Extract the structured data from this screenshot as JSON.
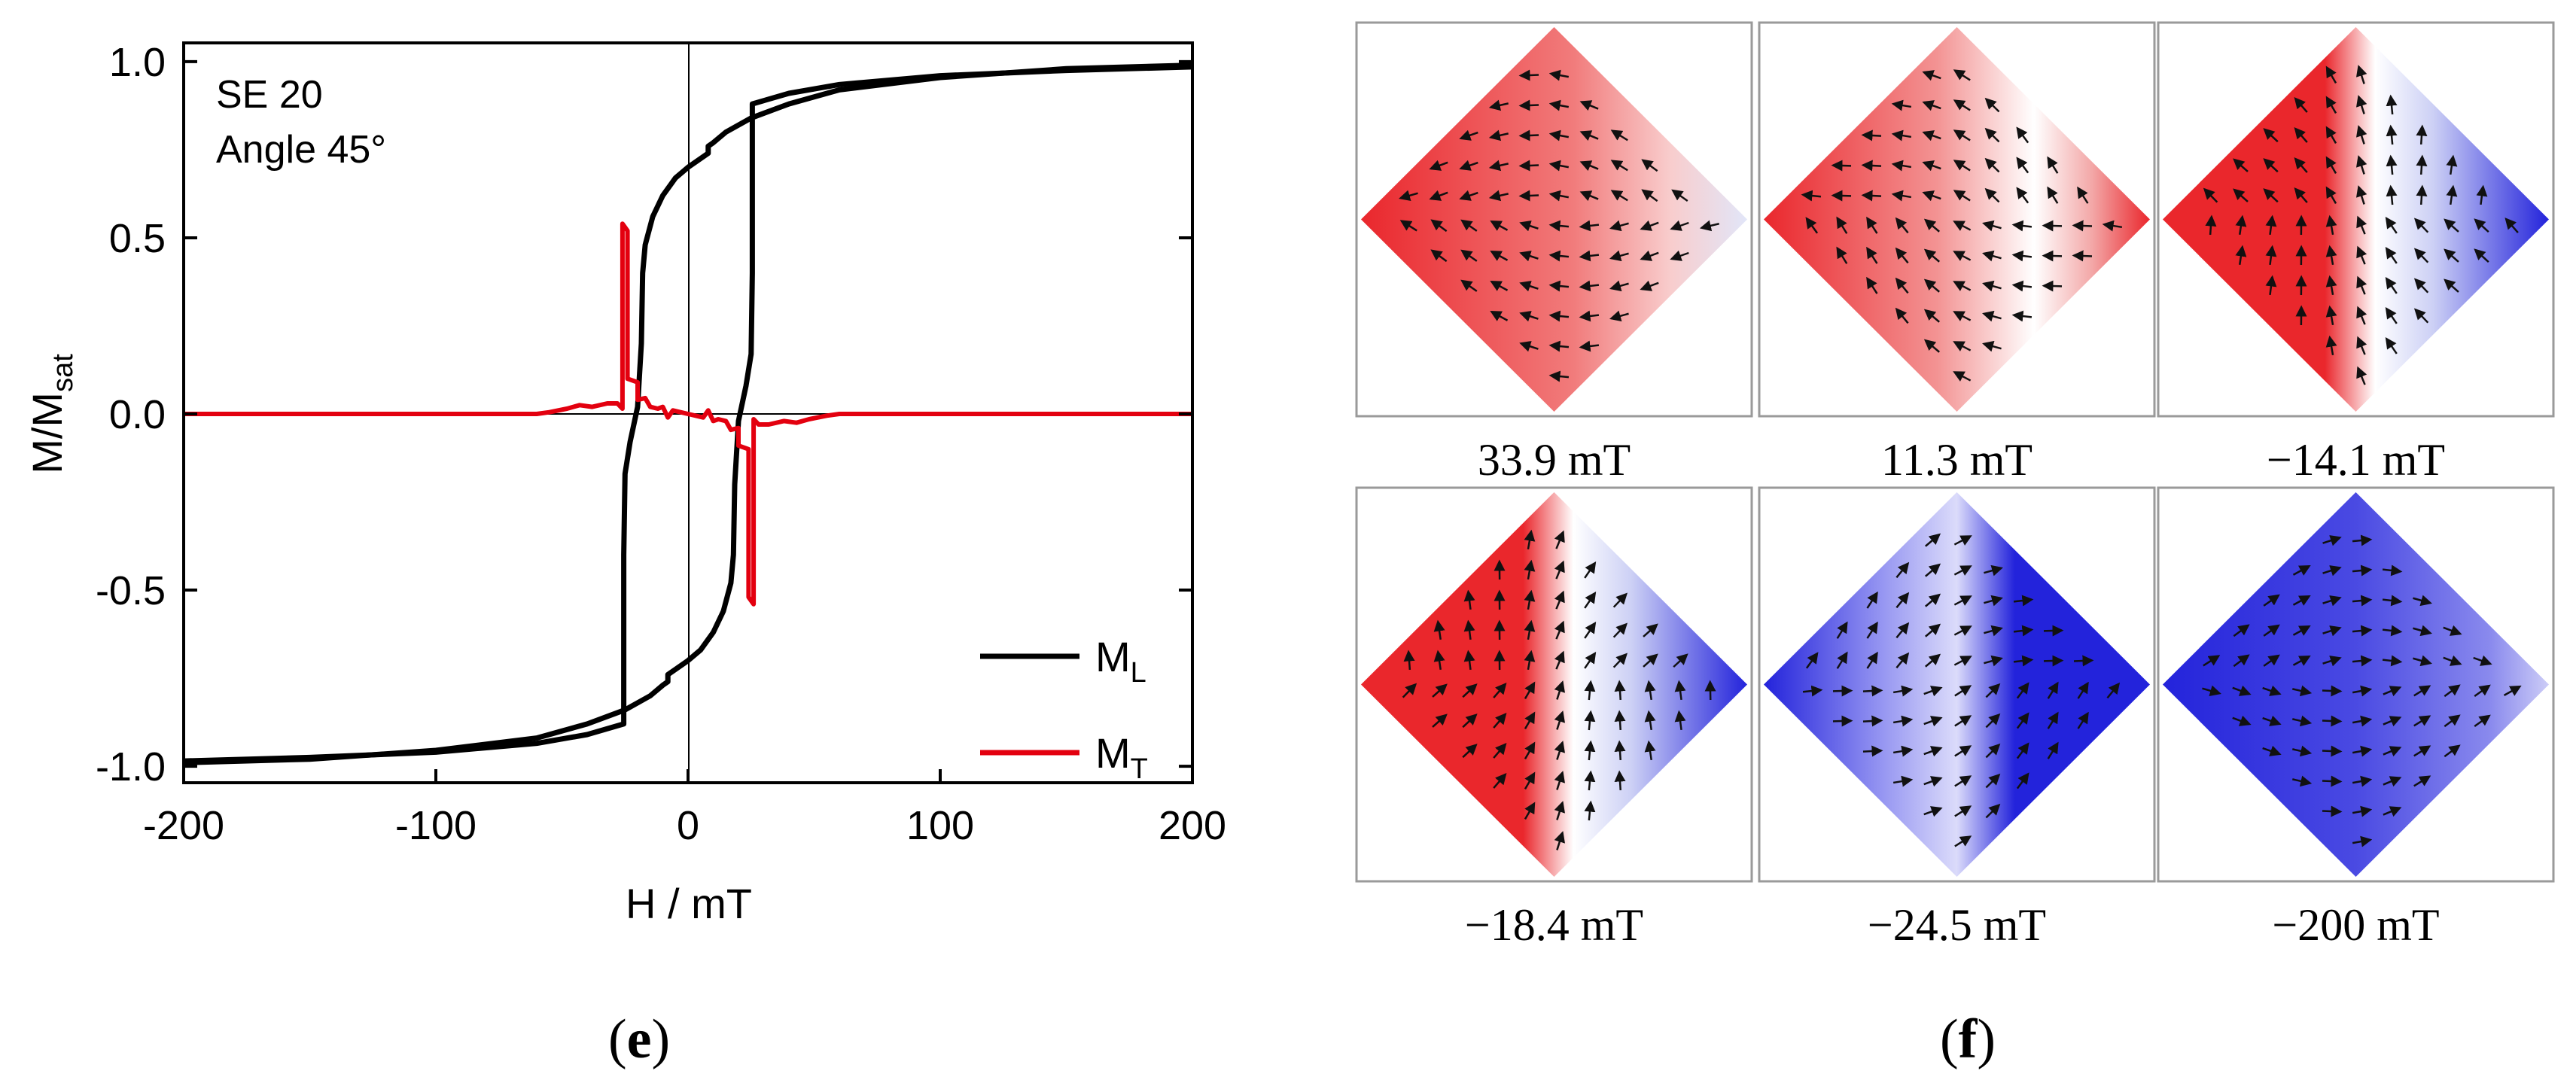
{
  "chart_data": [
    {
      "type": "line",
      "panel_label": "e",
      "xlabel": "H / mT",
      "ylabel_main": "M/M",
      "ylabel_sub": "sat",
      "xlim": [
        -200,
        200
      ],
      "ylim": [
        -1.05,
        1.05
      ],
      "xticks": [
        -200,
        -100,
        0,
        100,
        200
      ],
      "yticks": [
        -1.0,
        -0.5,
        0.0,
        0.5,
        1.0
      ],
      "xtick_labels": [
        "-200",
        "-100",
        "0",
        "100",
        "200"
      ],
      "ytick_labels": [
        "-1.0",
        "-0.5",
        "0.0",
        "0.5",
        "1.0"
      ],
      "annotations": [
        "SE 20",
        "Angle 45°"
      ],
      "legend": [
        {
          "name": "M",
          "sub": "L",
          "color": "#000000"
        },
        {
          "name": "M",
          "sub": "T",
          "color": "#e3000f"
        }
      ],
      "series": [
        {
          "name": "M_L descending",
          "color": "#000000",
          "points": [
            [
              200,
              0.99
            ],
            [
              150,
              0.98
            ],
            [
              100,
              0.955
            ],
            [
              60,
              0.92
            ],
            [
              40,
              0.88
            ],
            [
              25,
              0.84
            ],
            [
              15,
              0.8
            ],
            [
              10,
              0.77
            ],
            [
              8,
              0.76
            ],
            [
              8,
              0.74
            ],
            [
              0,
              0.7
            ],
            [
              -5,
              0.67
            ],
            [
              -10,
              0.62
            ],
            [
              -14,
              0.56
            ],
            [
              -17,
              0.48
            ],
            [
              -18,
              0.4
            ],
            [
              -18.5,
              0.2
            ],
            [
              -20,
              0.02
            ],
            [
              -23,
              -0.08
            ],
            [
              -25,
              -0.17
            ],
            [
              -25.5,
              -0.4
            ],
            [
              -25.5,
              -0.88
            ],
            [
              -40,
              -0.91
            ],
            [
              -60,
              -0.935
            ],
            [
              -100,
              -0.96
            ],
            [
              -150,
              -0.975
            ],
            [
              -200,
              -0.985
            ]
          ]
        },
        {
          "name": "M_L ascending",
          "color": "#000000",
          "points": [
            [
              -200,
              -0.99
            ],
            [
              -150,
              -0.98
            ],
            [
              -100,
              -0.955
            ],
            [
              -60,
              -0.92
            ],
            [
              -40,
              -0.88
            ],
            [
              -25,
              -0.84
            ],
            [
              -15,
              -0.8
            ],
            [
              -10,
              -0.77
            ],
            [
              -8,
              -0.76
            ],
            [
              -8,
              -0.74
            ],
            [
              0,
              -0.7
            ],
            [
              5,
              -0.67
            ],
            [
              10,
              -0.62
            ],
            [
              14,
              -0.56
            ],
            [
              17,
              -0.48
            ],
            [
              18,
              -0.4
            ],
            [
              18.5,
              -0.2
            ],
            [
              20,
              -0.02
            ],
            [
              23,
              0.08
            ],
            [
              25,
              0.17
            ],
            [
              25.5,
              0.4
            ],
            [
              25.5,
              0.88
            ],
            [
              40,
              0.91
            ],
            [
              60,
              0.935
            ],
            [
              100,
              0.96
            ],
            [
              150,
              0.975
            ],
            [
              200,
              0.985
            ]
          ]
        },
        {
          "name": "M_T",
          "color": "#e3000f",
          "points": [
            [
              -200,
              0
            ],
            [
              -60,
              0
            ],
            [
              -55,
              0.005
            ],
            [
              -48,
              0.015
            ],
            [
              -43,
              0.025
            ],
            [
              -38,
              0.02
            ],
            [
              -32,
              0.03
            ],
            [
              -28,
              0.03
            ],
            [
              -26,
              0.015
            ],
            [
              -26,
              0.54
            ],
            [
              -24,
              0.52
            ],
            [
              -24,
              0.1
            ],
            [
              -20,
              0.09
            ],
            [
              -20,
              0.04
            ],
            [
              -17,
              0.045
            ],
            [
              -15,
              0.02
            ],
            [
              -12,
              0.015
            ],
            [
              -10,
              0.02
            ],
            [
              -8,
              -0.01
            ],
            [
              -6,
              0.01
            ],
            [
              0,
              0
            ],
            [
              6,
              -0.01
            ],
            [
              8,
              0.01
            ],
            [
              10,
              -0.02
            ],
            [
              12,
              -0.015
            ],
            [
              15,
              -0.02
            ],
            [
              17,
              -0.045
            ],
            [
              20,
              -0.04
            ],
            [
              20,
              -0.09
            ],
            [
              24,
              -0.1
            ],
            [
              24,
              -0.52
            ],
            [
              26,
              -0.54
            ],
            [
              26,
              -0.015
            ],
            [
              28,
              -0.03
            ],
            [
              32,
              -0.03
            ],
            [
              38,
              -0.02
            ],
            [
              43,
              -0.025
            ],
            [
              48,
              -0.015
            ],
            [
              55,
              -0.005
            ],
            [
              60,
              0
            ],
            [
              200,
              0
            ]
          ]
        }
      ]
    },
    {
      "type": "heatmap",
      "panel_label": "f",
      "description_labels": [
        "33.9 mT",
        "11.3 mT",
        "−14.1 mT",
        "−18.4 mT",
        "−24.5 mT",
        "−200 mT"
      ],
      "colormap": {
        "positive": "#e8141a",
        "neutral": "#ffffff",
        "negative": "#1010d8"
      },
      "tiles": [
        {
          "label": "33.9 mT",
          "angle_deg": 172,
          "flow": "mostly-red"
        },
        {
          "label": "11.3 mT",
          "angle_deg": 150,
          "flow": "red-with-white-band"
        },
        {
          "label": "−14.1 mT",
          "angle_deg": 110,
          "flow": "red-white-blue"
        },
        {
          "label": "−18.4 mT",
          "angle_deg": 70,
          "flow": "red-white-blue"
        },
        {
          "label": "−24.5 mT",
          "angle_deg": 30,
          "flow": "blue-with-white-band"
        },
        {
          "label": "−200 mT",
          "angle_deg": 8,
          "flow": "mostly-blue"
        }
      ]
    }
  ]
}
